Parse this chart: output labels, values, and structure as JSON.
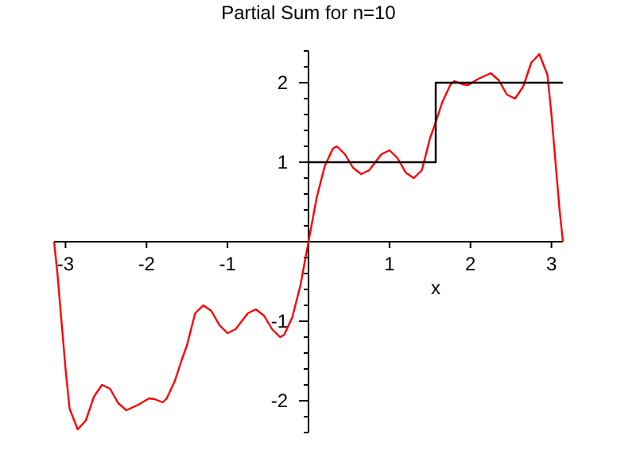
{
  "chart_data": {
    "type": "line",
    "title": "Partial Sum for n=10",
    "xlabel": "x",
    "xlim": [
      -3.1416,
      3.1416
    ],
    "ylim": [
      -2.4,
      2.4
    ],
    "xticks": [
      -3,
      -2,
      -1,
      1,
      2,
      3
    ],
    "yticks": [
      {
        "value": -2.4,
        "label": null
      },
      {
        "value": -2.2,
        "label": null
      },
      -2,
      {
        "value": -1.8,
        "label": null
      },
      {
        "value": -1.6,
        "label": null
      },
      {
        "value": -1.4,
        "label": null
      },
      {
        "value": -1.2,
        "label": null
      },
      -1,
      {
        "value": -0.8,
        "label": null
      },
      {
        "value": -0.6,
        "label": null
      },
      {
        "value": -0.4,
        "label": null
      },
      {
        "value": -0.2,
        "label": null
      },
      {
        "value": 0.2,
        "label": null
      },
      {
        "value": 0.4,
        "label": null
      },
      {
        "value": 0.6,
        "label": null
      },
      {
        "value": 0.8,
        "label": null
      },
      1,
      {
        "value": 1.2,
        "label": null
      },
      {
        "value": 1.4,
        "label": null
      },
      {
        "value": 1.6,
        "label": null
      },
      {
        "value": 1.8,
        "label": null
      },
      2,
      {
        "value": 2.2,
        "label": null
      },
      {
        "value": 2.4,
        "label": null
      }
    ],
    "grid": false,
    "marker": "none",
    "line_style": "solid",
    "series": [
      {
        "color": "#ff0000",
        "x": [
          -3.1416,
          -3.1,
          -3.05,
          -3.0,
          -2.95,
          -2.85,
          -2.75,
          -2.65,
          -2.55,
          -2.45,
          -2.35,
          -2.25,
          -2.1,
          -1.97,
          -1.9,
          -1.8,
          -1.75,
          -1.65,
          -1.57,
          -1.5,
          -1.4,
          -1.3,
          -1.2,
          -1.1,
          -1.0,
          -0.9,
          -0.75,
          -0.65,
          -0.55,
          -0.45,
          -0.35,
          -0.3,
          -0.2,
          -0.1,
          0,
          0.1,
          0.2,
          0.3,
          0.35,
          0.45,
          0.55,
          0.65,
          0.75,
          0.9,
          1.0,
          1.1,
          1.2,
          1.3,
          1.4,
          1.5,
          1.57,
          1.65,
          1.75,
          1.8,
          1.9,
          1.97,
          2.1,
          2.25,
          2.35,
          2.45,
          2.55,
          2.65,
          2.75,
          2.85,
          2.95,
          3.0,
          3.05,
          3.1,
          3.1416
        ],
        "values": [
          0,
          -0.4,
          -1.0,
          -1.6,
          -2.1,
          -2.36,
          -2.25,
          -1.95,
          -1.8,
          -1.85,
          -2.03,
          -2.12,
          -2.05,
          -1.97,
          -1.98,
          -2.02,
          -1.97,
          -1.75,
          -1.5,
          -1.3,
          -0.9,
          -0.8,
          -0.87,
          -1.05,
          -1.15,
          -1.1,
          -0.9,
          -0.85,
          -0.93,
          -1.1,
          -1.2,
          -1.17,
          -0.95,
          -0.55,
          0,
          0.55,
          0.95,
          1.17,
          1.2,
          1.1,
          0.93,
          0.85,
          0.9,
          1.1,
          1.15,
          1.05,
          0.87,
          0.8,
          0.9,
          1.3,
          1.5,
          1.75,
          1.97,
          2.02,
          1.98,
          1.97,
          2.05,
          2.12,
          2.03,
          1.85,
          1.8,
          1.95,
          2.25,
          2.36,
          2.1,
          1.6,
          1.0,
          0.4,
          0
        ]
      },
      {
        "color": "#000000",
        "x": [
          0,
          1.5708,
          1.5708,
          3.1416
        ],
        "values": [
          1,
          1,
          2,
          2
        ]
      }
    ]
  }
}
